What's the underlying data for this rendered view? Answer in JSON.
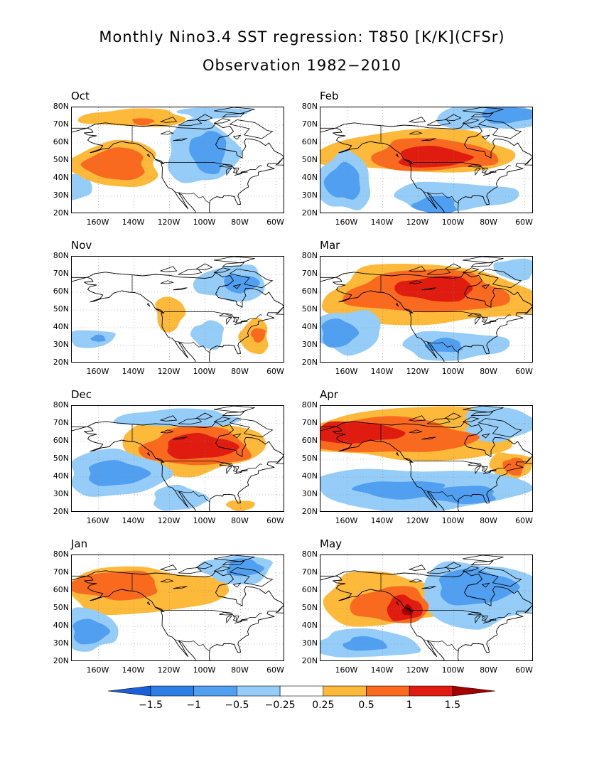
{
  "title": "Monthly Nino3.4 SST regression: T850 [K/K](CFSr)",
  "subtitle": "Observation 1982−2010",
  "lat_labels": [
    "80N",
    "70N",
    "60N",
    "50N",
    "40N",
    "30N",
    "20N"
  ],
  "lon_labels": [
    "160W",
    "140W",
    "120W",
    "100W",
    "80W",
    "60W"
  ],
  "panels": [
    {
      "label": "Oct",
      "blobs": [
        {
          "level": 0.25,
          "lon": -150,
          "lat": 48,
          "rlon": 25,
          "rlat": 13
        },
        {
          "level": 0.5,
          "lon": -150,
          "lat": 48,
          "rlon": 17,
          "rlat": 9
        },
        {
          "level": 0.25,
          "lon": -140,
          "lat": 74,
          "rlon": 30,
          "rlat": 5
        },
        {
          "level": 0.5,
          "lon": -135,
          "lat": 72,
          "rlon": 6,
          "rlat": 2
        },
        {
          "level": -0.25,
          "lon": -102,
          "lat": 55,
          "rlon": 20,
          "rlat": 18
        },
        {
          "level": -0.5,
          "lon": -98,
          "lat": 55,
          "rlon": 10,
          "rlat": 12
        },
        {
          "level": -0.25,
          "lon": -172,
          "lat": 35,
          "rlon": 8,
          "rlat": 7
        },
        {
          "level": -0.25,
          "lon": -95,
          "lat": 77,
          "rlon": 20,
          "rlat": 3
        }
      ]
    },
    {
      "label": "Feb",
      "blobs": [
        {
          "level": 0.25,
          "lon": -120,
          "lat": 55,
          "rlon": 55,
          "rlat": 12
        },
        {
          "level": 0.5,
          "lon": -112,
          "lat": 53,
          "rlon": 35,
          "rlat": 9
        },
        {
          "level": 1,
          "lon": -112,
          "lat": 52,
          "rlon": 20,
          "rlat": 6
        },
        {
          "level": -0.25,
          "lon": -162,
          "lat": 38,
          "rlon": 16,
          "rlat": 16
        },
        {
          "level": -0.5,
          "lon": -162,
          "lat": 38,
          "rlon": 10,
          "rlat": 10
        },
        {
          "level": -0.25,
          "lon": -100,
          "lat": 30,
          "rlon": 35,
          "rlat": 8
        },
        {
          "level": -0.5,
          "lon": -110,
          "lat": 25,
          "rlon": 12,
          "rlat": 5
        },
        {
          "level": -0.25,
          "lon": -80,
          "lat": 75,
          "rlon": 30,
          "rlat": 8
        },
        {
          "level": -0.5,
          "lon": -70,
          "lat": 76,
          "rlon": 15,
          "rlat": 5
        }
      ]
    },
    {
      "label": "Nov",
      "blobs": [
        {
          "level": 0.25,
          "lon": -120,
          "lat": 48,
          "rlon": 8,
          "rlat": 10
        },
        {
          "level": 0.25,
          "lon": -72,
          "lat": 35,
          "rlon": 8,
          "rlat": 10
        },
        {
          "level": 0.5,
          "lon": -70,
          "lat": 36,
          "rlon": 4,
          "rlat": 4
        },
        {
          "level": -0.25,
          "lon": -165,
          "lat": 34,
          "rlon": 14,
          "rlat": 5
        },
        {
          "level": -0.5,
          "lon": -160,
          "lat": 34,
          "rlon": 4,
          "rlat": 2
        },
        {
          "level": -0.25,
          "lon": -98,
          "lat": 36,
          "rlon": 9,
          "rlat": 8
        },
        {
          "level": -0.25,
          "lon": -85,
          "lat": 65,
          "rlon": 20,
          "rlat": 10
        },
        {
          "level": -0.5,
          "lon": -80,
          "lat": 65,
          "rlon": 10,
          "rlat": 5
        }
      ]
    },
    {
      "label": "Mar",
      "blobs": [
        {
          "level": 0.25,
          "lon": -115,
          "lat": 58,
          "rlon": 60,
          "rlat": 17
        },
        {
          "level": 0.5,
          "lon": -115,
          "lat": 60,
          "rlon": 45,
          "rlat": 12
        },
        {
          "level": 1,
          "lon": -110,
          "lat": 62,
          "rlon": 22,
          "rlat": 7
        },
        {
          "level": -0.25,
          "lon": -160,
          "lat": 38,
          "rlon": 20,
          "rlat": 12
        },
        {
          "level": -0.5,
          "lon": -165,
          "lat": 37,
          "rlon": 10,
          "rlat": 8
        },
        {
          "level": -0.25,
          "lon": -100,
          "lat": 30,
          "rlon": 30,
          "rlat": 8
        },
        {
          "level": -0.5,
          "lon": -105,
          "lat": 30,
          "rlon": 10,
          "rlat": 4
        },
        {
          "level": -0.25,
          "lon": -65,
          "lat": 73,
          "rlon": 12,
          "rlat": 6
        }
      ]
    },
    {
      "label": "Dec",
      "blobs": [
        {
          "level": 0.25,
          "lon": -108,
          "lat": 57,
          "rlon": 40,
          "rlat": 15
        },
        {
          "level": 0.5,
          "lon": -105,
          "lat": 57,
          "rlon": 30,
          "rlat": 11
        },
        {
          "level": 1,
          "lon": -103,
          "lat": 57,
          "rlon": 20,
          "rlat": 7
        },
        {
          "level": 0.25,
          "lon": -80,
          "lat": 24,
          "rlon": 8,
          "rlat": 3
        },
        {
          "level": -0.25,
          "lon": -150,
          "lat": 42,
          "rlon": 28,
          "rlat": 13
        },
        {
          "level": -0.5,
          "lon": -150,
          "lat": 42,
          "rlon": 17,
          "rlat": 7
        },
        {
          "level": -0.25,
          "lon": -115,
          "lat": 28,
          "rlon": 15,
          "rlat": 7
        },
        {
          "level": -0.25,
          "lon": -115,
          "lat": 73,
          "rlon": 35,
          "rlat": 5
        }
      ]
    },
    {
      "label": "Apr",
      "blobs": [
        {
          "level": 0.25,
          "lon": -125,
          "lat": 64,
          "rlon": 60,
          "rlat": 15
        },
        {
          "level": 0.5,
          "lon": -135,
          "lat": 63,
          "rlon": 45,
          "rlat": 10
        },
        {
          "level": 1,
          "lon": -155,
          "lat": 65,
          "rlon": 25,
          "rlat": 6
        },
        {
          "level": 0.25,
          "lon": -68,
          "lat": 46,
          "rlon": 12,
          "rlat": 8
        },
        {
          "level": 0.5,
          "lon": -66,
          "lat": 46,
          "rlon": 6,
          "rlat": 5
        },
        {
          "level": -0.25,
          "lon": -120,
          "lat": 33,
          "rlon": 60,
          "rlat": 12
        },
        {
          "level": -0.5,
          "lon": -130,
          "lat": 33,
          "rlon": 25,
          "rlat": 5
        },
        {
          "level": -0.5,
          "lon": -95,
          "lat": 30,
          "rlon": 20,
          "rlat": 5
        },
        {
          "level": -0.25,
          "lon": -75,
          "lat": 70,
          "rlon": 20,
          "rlat": 10
        }
      ]
    },
    {
      "label": "Jan",
      "blobs": [
        {
          "level": 0.25,
          "lon": -135,
          "lat": 60,
          "rlon": 45,
          "rlat": 13
        },
        {
          "level": 0.5,
          "lon": -150,
          "lat": 63,
          "rlon": 25,
          "rlat": 8
        },
        {
          "level": -0.25,
          "lon": -165,
          "lat": 38,
          "rlon": 15,
          "rlat": 12
        },
        {
          "level": -0.5,
          "lon": -165,
          "lat": 37,
          "rlon": 10,
          "rlat": 7
        },
        {
          "level": -0.25,
          "lon": -82,
          "lat": 72,
          "rlon": 20,
          "rlat": 8
        },
        {
          "level": -0.5,
          "lon": -78,
          "lat": 73,
          "rlon": 10,
          "rlat": 5
        }
      ]
    },
    {
      "label": "May",
      "blobs": [
        {
          "level": 0.25,
          "lon": -140,
          "lat": 55,
          "rlon": 35,
          "rlat": 15
        },
        {
          "level": 0.5,
          "lon": -135,
          "lat": 52,
          "rlon": 22,
          "rlat": 10
        },
        {
          "level": 1,
          "lon": -128,
          "lat": 50,
          "rlon": 10,
          "rlat": 7
        },
        {
          "level": 1.5,
          "lon": -126,
          "lat": 49,
          "rlon": 3,
          "rlat": 3
        },
        {
          "level": -0.25,
          "lon": -85,
          "lat": 58,
          "rlon": 35,
          "rlat": 18
        },
        {
          "level": -0.5,
          "lon": -88,
          "lat": 62,
          "rlon": 22,
          "rlat": 10
        },
        {
          "level": -0.25,
          "lon": -150,
          "lat": 30,
          "rlon": 30,
          "rlat": 8
        },
        {
          "level": -0.5,
          "lon": -150,
          "lat": 30,
          "rlon": 12,
          "rlat": 4
        }
      ]
    }
  ],
  "colorbar": {
    "labels": [
      "−1.5",
      "−1",
      "−0.5",
      "−0.25",
      "0.25",
      "0.5",
      "1",
      "1.5"
    ],
    "colors": [
      "#1a5fd9",
      "#2d7fe6",
      "#509ff0",
      "#96cdf8",
      "#ffffff",
      "#fdb93a",
      "#fa6a1e",
      "#e01c10",
      "#a50000"
    ],
    "levels": [
      -1.5,
      -1,
      -0.5,
      -0.25,
      0.25,
      0.5,
      1,
      1.5
    ]
  }
}
